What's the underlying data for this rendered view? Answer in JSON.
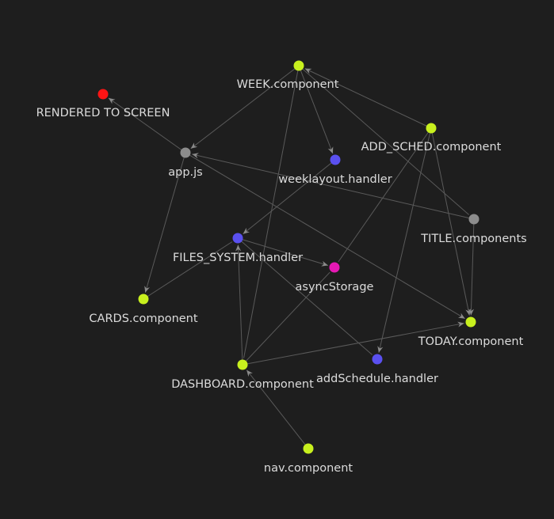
{
  "colors": {
    "background": "#1e1e1e",
    "edge": "#5a5a5a",
    "arrow": "#8a8a8a",
    "label": "#dcdcdc",
    "component": "#c8f01e",
    "handler": "#5a50f0",
    "core": "#8c8c8c",
    "storage": "#e619b4",
    "screen": "#ff1414"
  },
  "nodes": [
    {
      "id": "week",
      "label": "WEEK.component",
      "kind": "component"
    },
    {
      "id": "rendered",
      "label": "RENDERED TO SCREEN",
      "kind": "screen"
    },
    {
      "id": "addsched",
      "label": "ADD_SCHED.component",
      "kind": "component"
    },
    {
      "id": "app",
      "label": "app.js",
      "kind": "core"
    },
    {
      "id": "weeklayout",
      "label": "weeklayout.handler",
      "kind": "handler"
    },
    {
      "id": "title",
      "label": "TITLE.components",
      "kind": "core"
    },
    {
      "id": "files",
      "label": "FILES_SYSTEM.handler",
      "kind": "handler"
    },
    {
      "id": "async",
      "label": "asyncStorage",
      "kind": "storage"
    },
    {
      "id": "cards",
      "label": "CARDS.component",
      "kind": "component"
    },
    {
      "id": "today",
      "label": "TODAY.component",
      "kind": "component"
    },
    {
      "id": "addhandler",
      "label": "addSchedule.handler",
      "kind": "handler"
    },
    {
      "id": "dashboard",
      "label": "DASHBOARD.component",
      "kind": "component"
    },
    {
      "id": "nav",
      "label": "nav.component",
      "kind": "component"
    }
  ],
  "edges": [
    {
      "from": "week",
      "to": "app",
      "arrow": true
    },
    {
      "from": "week",
      "to": "weeklayout",
      "arrow": true
    },
    {
      "from": "week",
      "to": "dashboard",
      "arrow": false
    },
    {
      "from": "week",
      "to": "title",
      "arrow": false
    },
    {
      "from": "app",
      "to": "rendered",
      "arrow": true
    },
    {
      "from": "app",
      "to": "cards",
      "arrow": true
    },
    {
      "from": "app",
      "to": "today",
      "arrow": true
    },
    {
      "from": "title",
      "to": "app",
      "arrow": true
    },
    {
      "from": "title",
      "to": "today",
      "arrow": true
    },
    {
      "from": "addsched",
      "to": "week",
      "arrow": true
    },
    {
      "from": "addsched",
      "to": "today",
      "arrow": true
    },
    {
      "from": "addsched",
      "to": "addhandler",
      "arrow": true
    },
    {
      "from": "addsched",
      "to": "async",
      "arrow": false
    },
    {
      "from": "weeklayout",
      "to": "files",
      "arrow": true
    },
    {
      "from": "files",
      "to": "async",
      "arrow": true
    },
    {
      "from": "files",
      "to": "addhandler",
      "arrow": false
    },
    {
      "from": "cards",
      "to": "files",
      "arrow": false
    },
    {
      "from": "dashboard",
      "to": "files",
      "arrow": true
    },
    {
      "from": "dashboard",
      "to": "today",
      "arrow": true
    },
    {
      "from": "dashboard",
      "to": "async",
      "arrow": false
    },
    {
      "from": "nav",
      "to": "dashboard",
      "arrow": true
    }
  ]
}
